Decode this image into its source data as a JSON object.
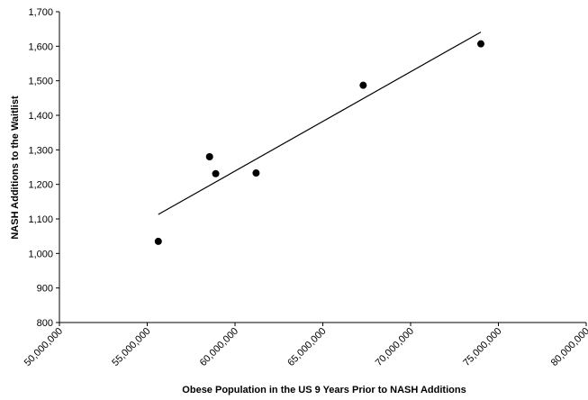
{
  "chart_data": {
    "type": "scatter",
    "x_label": "Obese Population in the US 9 Years Prior to NASH Additions",
    "y_label": "NASH Additions to the Waitlist",
    "series": [
      {
        "x": [
          55630000,
          58550000,
          58900000,
          61200000,
          67300000,
          74000000
        ],
        "values": [
          1035,
          1280,
          1231,
          1233,
          1487,
          1607
        ],
        "color": "#000000"
      }
    ],
    "trendline": {
      "x": [
        55630000,
        74000000
      ],
      "values": [
        1113,
        1641
      ],
      "color": "#000000"
    },
    "xlim": [
      50000000,
      80000000
    ],
    "xticks": [
      {
        "value": 50000000,
        "label": "50,000,000"
      },
      {
        "value": 55000000,
        "label": "55,000,000"
      },
      {
        "value": 60000000,
        "label": "60,000,000"
      },
      {
        "value": 65000000,
        "label": "65,000,000"
      },
      {
        "value": 70000000,
        "label": "70,000,000"
      },
      {
        "value": 75000000,
        "label": "75,000,000"
      },
      {
        "value": 80000000,
        "label": "80,000,000"
      }
    ],
    "ylim": [
      800,
      1700
    ],
    "yticks": [
      800,
      900,
      {
        "value": 1000,
        "label": "1,000"
      },
      {
        "value": 1100,
        "label": "1,100"
      },
      {
        "value": 1200,
        "label": "1,200"
      },
      {
        "value": 1300,
        "label": "1,300"
      },
      {
        "value": 1400,
        "label": "1,400"
      },
      {
        "value": 1500,
        "label": "1,500"
      },
      {
        "value": 1600,
        "label": "1,600"
      },
      {
        "value": 1700,
        "label": "1,700"
      }
    ],
    "grid": false
  }
}
